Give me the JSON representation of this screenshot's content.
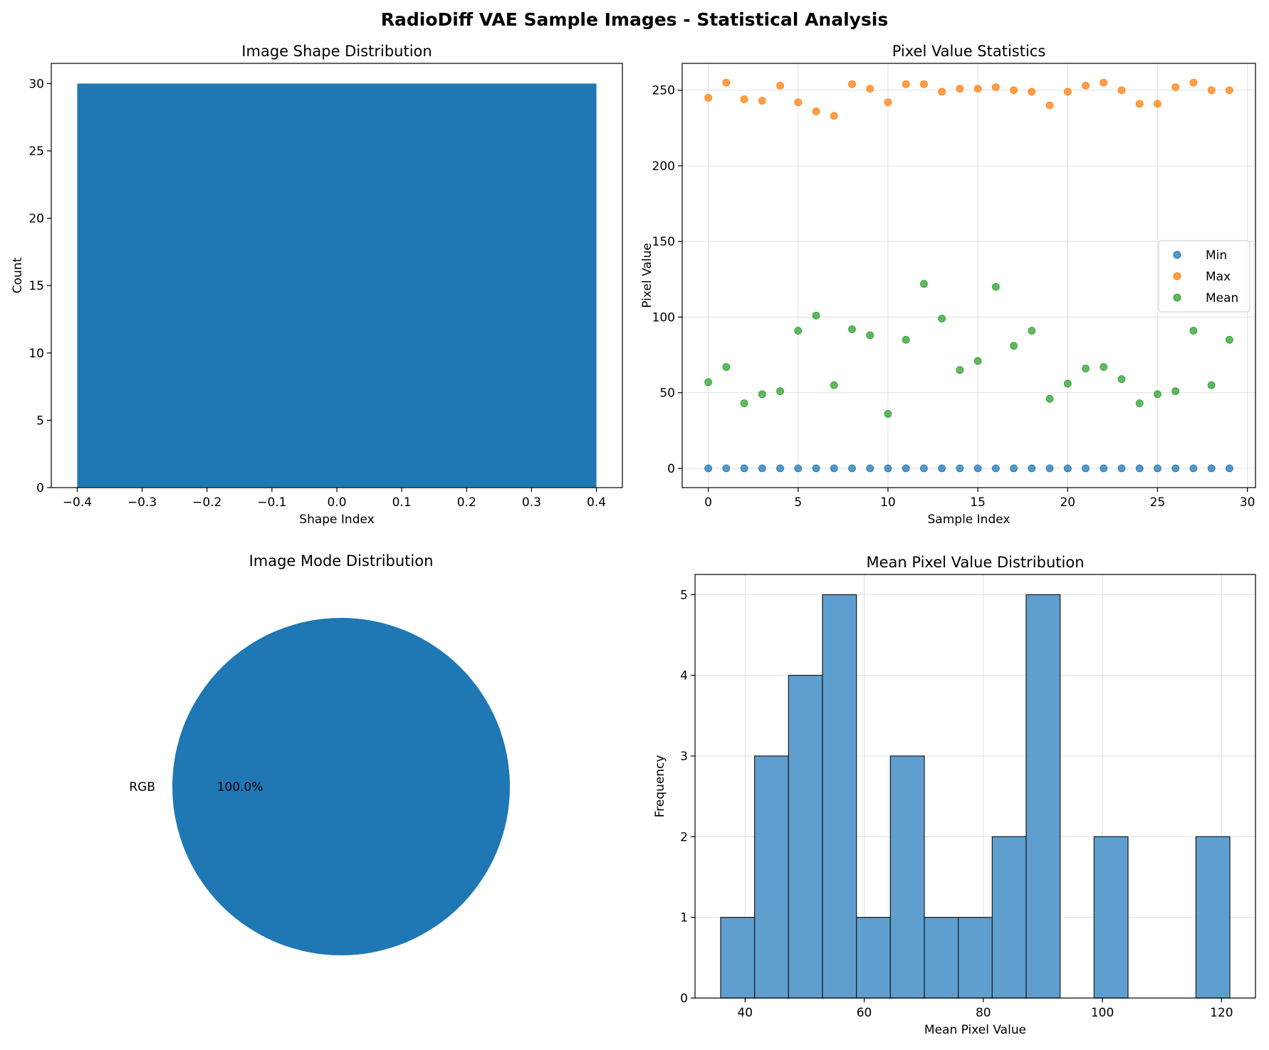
{
  "figure": {
    "title": "RadioDiff VAE Sample Images - Statistical Analysis"
  },
  "colors": {
    "blue": "#1f77b4",
    "orange": "#ff7f0e",
    "green": "#2ca02c",
    "hist": "#5f9fcf",
    "grid": "#e0e0e0"
  },
  "chart_data": [
    {
      "type": "bar",
      "title": "Image Shape Distribution",
      "xlabel": "Shape Index",
      "ylabel": "Count",
      "x": [
        0
      ],
      "values": [
        30
      ],
      "bar_width": 0.8,
      "xlim": [
        -0.44,
        0.44
      ],
      "ylim": [
        0,
        31.5
      ],
      "xticks": [
        -0.4,
        -0.3,
        -0.2,
        -0.1,
        0.0,
        0.1,
        0.2,
        0.3,
        0.4
      ],
      "xtick_labels": [
        "−0.4",
        "−0.3",
        "−0.2",
        "−0.1",
        "0.0",
        "0.1",
        "0.2",
        "0.3",
        "0.4"
      ],
      "yticks": [
        0,
        5,
        10,
        15,
        20,
        25,
        30
      ],
      "grid": false
    },
    {
      "type": "scatter",
      "title": "Pixel Value Statistics",
      "xlabel": "Sample Index",
      "ylabel": "Pixel Value",
      "xlim": [
        -1.45,
        30.45
      ],
      "ylim": [
        -12.75,
        267.75
      ],
      "xticks": [
        0,
        5,
        10,
        15,
        20,
        25,
        30
      ],
      "yticks": [
        0,
        50,
        100,
        150,
        200,
        250
      ],
      "grid": true,
      "legend_position": "center-right",
      "x": [
        0,
        1,
        2,
        3,
        4,
        5,
        6,
        7,
        8,
        9,
        10,
        11,
        12,
        13,
        14,
        15,
        16,
        17,
        18,
        19,
        20,
        21,
        22,
        23,
        24,
        25,
        26,
        27,
        28,
        29
      ],
      "series": [
        {
          "name": "Min",
          "color": "#1f77b4",
          "values": [
            0,
            0,
            0,
            0,
            0,
            0,
            0,
            0,
            0,
            0,
            0,
            0,
            0,
            0,
            0,
            0,
            0,
            0,
            0,
            0,
            0,
            0,
            0,
            0,
            0,
            0,
            0,
            0,
            0,
            0
          ]
        },
        {
          "name": "Max",
          "color": "#ff7f0e",
          "values": [
            245,
            255,
            244,
            243,
            253,
            242,
            236,
            233,
            254,
            251,
            242,
            254,
            254,
            249,
            251,
            251,
            252,
            250,
            249,
            240,
            249,
            253,
            255,
            250,
            241,
            241,
            252,
            255,
            250,
            250
          ]
        },
        {
          "name": "Mean",
          "color": "#2ca02c",
          "values": [
            57,
            67,
            43,
            49,
            51,
            91,
            101,
            55,
            92,
            88,
            36,
            85,
            122,
            99,
            65,
            71,
            120,
            81,
            91,
            46,
            56,
            66,
            67,
            59,
            43,
            49,
            51,
            91,
            55,
            85
          ]
        }
      ]
    },
    {
      "type": "pie",
      "title": "Image Mode Distribution",
      "labels": [
        "RGB"
      ],
      "values": [
        100
      ],
      "autopct_labels": [
        "100.0%"
      ]
    },
    {
      "type": "bar",
      "subtype": "histogram",
      "title": "Mean Pixel Value Distribution",
      "xlabel": "Mean Pixel Value",
      "ylabel": "Frequency",
      "bin_edges": [
        35.9,
        41.6,
        47.3,
        53.0,
        58.7,
        64.4,
        70.1,
        75.8,
        81.5,
        87.2,
        92.9,
        98.6,
        104.3,
        110.0,
        115.7,
        121.4
      ],
      "values": [
        1,
        3,
        4,
        5,
        1,
        3,
        1,
        1,
        2,
        5,
        0,
        2,
        0,
        0,
        2
      ],
      "xlim": [
        31.6,
        125.7
      ],
      "ylim": [
        0,
        5.25
      ],
      "xticks": [
        40,
        60,
        80,
        100,
        120
      ],
      "yticks": [
        0,
        1,
        2,
        3,
        4,
        5
      ],
      "grid": true
    }
  ]
}
